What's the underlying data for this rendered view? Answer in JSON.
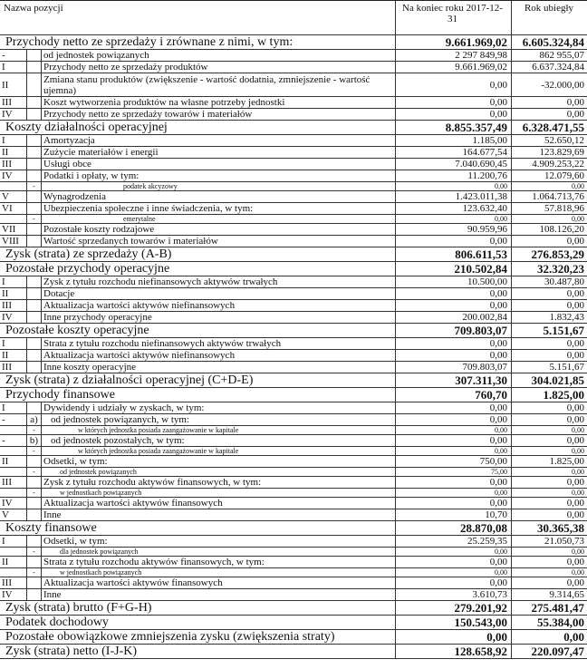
{
  "header": {
    "name": "Nazwa pozycji",
    "current": "Na koniec roku 2017-12-31",
    "previous": "Rok ubiegły"
  },
  "rows": [
    {
      "name": "Przychody netto ze sprzedaży i zrównane z nimi, w tym:",
      "cur": "9.661.969,02",
      "prev": "6.605.324,84"
    },
    {
      "num": "-",
      "name": "od jednostek powiązanych",
      "cur": "2 297 849,98",
      "prev": "862 955,07"
    },
    {
      "num": "I",
      "name": "Przychody netto ze sprzedaży produktów",
      "cur": "9.661.969,02",
      "prev": "6.637.324,84"
    },
    {
      "num": "II",
      "name": "Zmiana stanu produktów (zwiększenie - wartość dodatnia, zmniejszenie - wartość ujemna)",
      "cur": "0,00",
      "prev": "-32.000,00"
    },
    {
      "num": "III",
      "name": "Koszt wytworzenia produktów na własne potrzeby jednostki",
      "cur": "0,00",
      "prev": "0,00"
    },
    {
      "num": "IV",
      "name": "Przychody netto ze sprzedaży towarów i materiałów",
      "cur": "0,00",
      "prev": "0,00"
    },
    {
      "name": "Koszty działalności operacyjnej",
      "cur": "8.855.357,49",
      "prev": "6.328.471,55"
    },
    {
      "num": "I",
      "name": "Amortyzacja",
      "cur": "1.185,00",
      "prev": "52.650,12"
    },
    {
      "num": "II",
      "name": "Zużycie materiałów i energii",
      "cur": "164.677,54",
      "prev": "123.829,69"
    },
    {
      "num": "III",
      "name": "Usługi obce",
      "cur": "7.040.690,45",
      "prev": "4.909.253,22"
    },
    {
      "num": "IV",
      "name": "Podatki i opłaty, w tym:",
      "cur": "11.200,76",
      "prev": "12.079,60"
    },
    {
      "sub": "-",
      "name": "podatek akcyzowy",
      "cur": "0,00",
      "prev": "0,00"
    },
    {
      "num": "V",
      "name": "Wynagrodzenia",
      "cur": "1.423.011,38",
      "prev": "1.064.713,76"
    },
    {
      "num": "VI",
      "name": "Ubezpieczenia społeczne i inne świadczenia, w tym:",
      "cur": "123.632,40",
      "prev": "57.818,96"
    },
    {
      "sub": "-",
      "name": "emerytalne",
      "cur": "0,00",
      "prev": "0,00"
    },
    {
      "num": "VII",
      "name": "Pozostałe koszty rodzajowe",
      "cur": "90.959,96",
      "prev": "108.126,20"
    },
    {
      "num": "VIII",
      "name": "Wartość sprzedanych towarów i materiałów",
      "cur": "0,00",
      "prev": "0,00"
    },
    {
      "name": "Zysk (strata) ze sprzedaży (A-B)",
      "cur": "806.611,53",
      "prev": "276.853,29"
    },
    {
      "name": "Pozostałe przychody operacyjne",
      "cur": "210.502,84",
      "prev": "32.320,23"
    },
    {
      "num": "I",
      "name": "Zysk z tytułu rozchodu niefinansowych aktywów trwałych",
      "cur": "10.500,00",
      "prev": "30.487,80"
    },
    {
      "num": "II",
      "name": "Dotacje",
      "cur": "0,00",
      "prev": "0,00"
    },
    {
      "num": "III",
      "name": "Aktualizacja wartości aktywów niefinansowych",
      "cur": "0,00",
      "prev": "0,00"
    },
    {
      "num": "IV",
      "name": "Inne przychody operacyjne",
      "cur": "200.002,84",
      "prev": "1.832,43"
    },
    {
      "name": "Pozostałe koszty operacyjne",
      "cur": "709.803,07",
      "prev": "5.151,67"
    },
    {
      "num": "I",
      "name": "Strata z tytułu rozchodu niefinansowych aktywów trwałych",
      "cur": "0,00",
      "prev": "0,00"
    },
    {
      "num": "II",
      "name": "Aktualizacja wartości aktywów niefinansowych",
      "cur": "0,00",
      "prev": "0,00"
    },
    {
      "num": "III",
      "name": "Inne koszty operacyjne",
      "cur": "709.803,07",
      "prev": "5.151,67"
    },
    {
      "name": "Zysk (strata) z działalności operacyjnej (C+D-E)",
      "cur": "307.311,30",
      "prev": "304.021,85"
    },
    {
      "name": "Przychody finansowe",
      "cur": "760,70",
      "prev": "1.825,00"
    },
    {
      "num": "I",
      "name": "Dywidendy i udziały w zyskach, w tym:",
      "cur": "0,00",
      "prev": "0,00"
    },
    {
      "num": "-",
      "sub": "a)",
      "name": "od jednostek powiązanych, w tym:",
      "cur": "0,00",
      "prev": "0,00"
    },
    {
      "sub": "-",
      "name": "w których jednostka posiada zaangażowanie w kapitale",
      "cur": "0,00",
      "prev": "0,00"
    },
    {
      "num": "-",
      "sub": "b)",
      "name": "od jednostek pozostałych, w tym:",
      "cur": "0,00",
      "prev": "0,00"
    },
    {
      "sub": "-",
      "name": "w których jednostka posiada zaangażowanie w kapitale",
      "cur": "0,00",
      "prev": "0,00"
    },
    {
      "num": "II",
      "name": "Odsetki, w tym:",
      "cur": "750,00",
      "prev": "1.825,00"
    },
    {
      "sub": "-",
      "name": "od jednostek powiązanych",
      "cur": "75,00",
      "prev": "0,00"
    },
    {
      "num": "III",
      "name": "Zysk z tytułu rozchodu aktywów finansowych, w tym:",
      "cur": "0,00",
      "prev": "0,00"
    },
    {
      "sub": "-",
      "name": "w jednostkach powiązanych",
      "cur": "0,00",
      "prev": "0,00"
    },
    {
      "num": "IV",
      "name": "Aktualizacja wartości aktywów finansowych",
      "cur": "0,00",
      "prev": "0,00"
    },
    {
      "num": "V",
      "name": "Inne",
      "cur": "10,70",
      "prev": "0,00"
    },
    {
      "name": "Koszty finansowe",
      "cur": "28.870,08",
      "prev": "30.365,38"
    },
    {
      "num": "I",
      "name": "Odsetki, w tym:",
      "cur": "25.259,35",
      "prev": "21.050,73"
    },
    {
      "sub": "-",
      "name": "dla jednostek powiązanych",
      "cur": "0,00",
      "prev": "0,00"
    },
    {
      "num": "II",
      "name": "Strata z tytułu rozchodu aktywów finansowych, w tym:",
      "cur": "0,00",
      "prev": "0,00"
    },
    {
      "sub": "-",
      "name": "w jednostkach powiązanych",
      "cur": "0,00",
      "prev": "0,00"
    },
    {
      "num": "III",
      "name": "Aktualizacja wartości aktywów finansowych",
      "cur": "0,00",
      "prev": "0,00"
    },
    {
      "num": "IV",
      "name": "Inne",
      "cur": "3.610,73",
      "prev": "9.314,65"
    },
    {
      "name": "Zysk (strata) brutto (F+G-H)",
      "cur": "279.201,92",
      "prev": "275.481,47"
    },
    {
      "name": "Podatek dochodowy",
      "cur": "150.543,00",
      "prev": "55.384,00"
    },
    {
      "name": "Pozostałe obowiązkowe zmniejszenia zysku (zwiększenia straty)",
      "cur": "0,00",
      "prev": "0,00"
    },
    {
      "name": "Zysk (strata) netto (I-J-K)",
      "cur": "128.658,92",
      "prev": "220.097,47"
    }
  ]
}
